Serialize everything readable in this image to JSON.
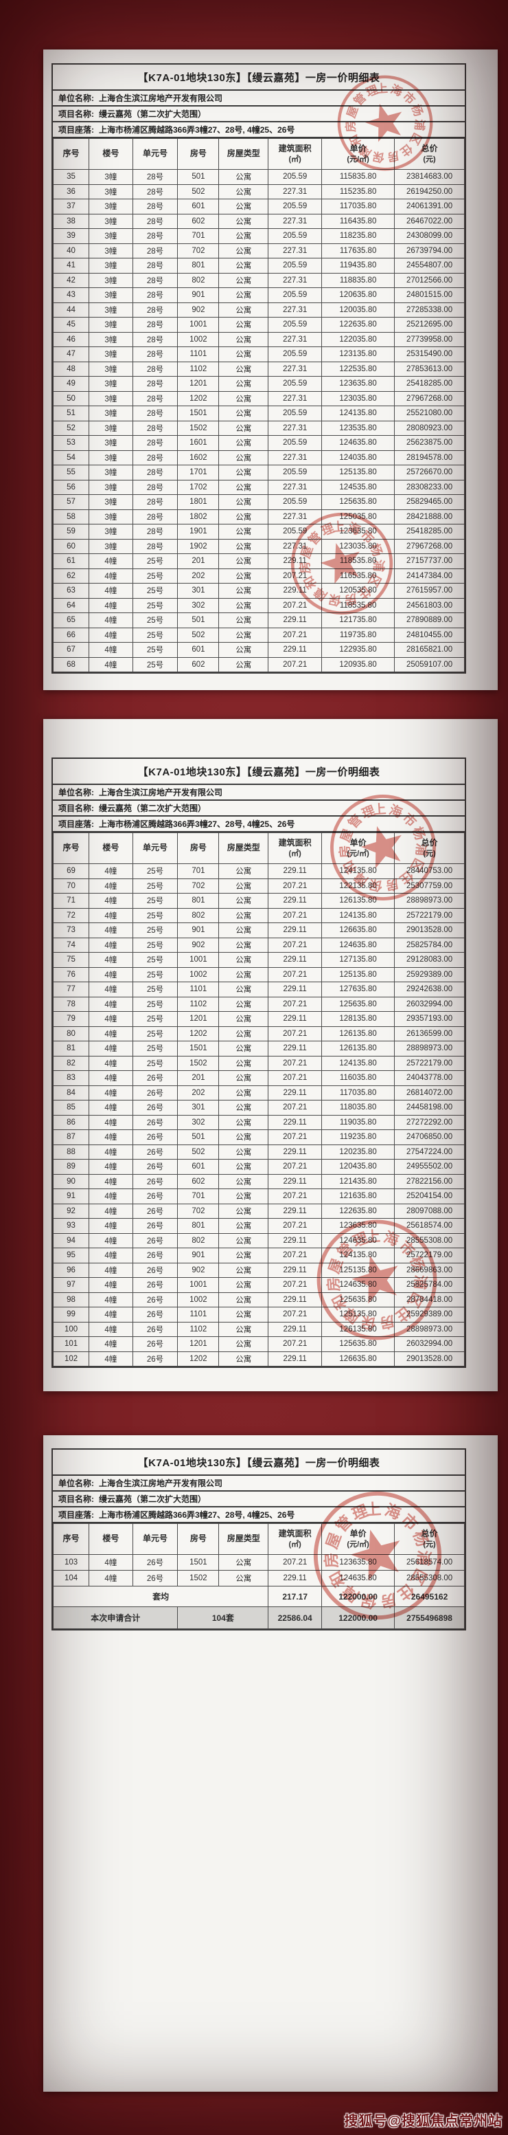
{
  "background_color": "#7a2024",
  "watermark": {
    "text": "搜狐号@搜狐焦点常州站"
  },
  "stamp": {
    "ring_text": "上海市杨浦区住房保障和房屋管理局",
    "color": "#c23b31"
  },
  "doc": {
    "title": "【K7A-01地块130东】【缦云嘉苑】一房一价明细表",
    "info": [
      {
        "label": "单位名称:",
        "value": "上海合生滨江房地产开发有限公司"
      },
      {
        "label": "项目名称:",
        "value": "缦云嘉苑（第二次扩大范围）"
      },
      {
        "label": "项目座落:",
        "value": "上海市杨浦区腾越路366弄3幢27、28号, 4幢25、26号"
      }
    ],
    "columns": [
      {
        "t": "序号"
      },
      {
        "t": "楼号"
      },
      {
        "t": "单元号"
      },
      {
        "t": "房号"
      },
      {
        "t": "房屋类型"
      },
      {
        "t": "建筑面积",
        "s": "(㎡)"
      },
      {
        "t": "单价",
        "s": "(元/㎡)"
      },
      {
        "t": "总价",
        "s": "(元)"
      }
    ]
  },
  "summary": {
    "avg_label": "套均",
    "avg": [
      "217.17",
      "122000.00",
      "26495162"
    ],
    "total_label": "本次申请合计",
    "total_units": "104套",
    "total": [
      "22586.04",
      "122000.00",
      "2755496898"
    ]
  },
  "pages": [
    {
      "rows": [
        [
          "35",
          "3幢",
          "28号",
          "501",
          "公寓",
          "205.59",
          "115835.80",
          "23814683.00"
        ],
        [
          "36",
          "3幢",
          "28号",
          "502",
          "公寓",
          "227.31",
          "115235.80",
          "26194250.00"
        ],
        [
          "37",
          "3幢",
          "28号",
          "601",
          "公寓",
          "205.59",
          "117035.80",
          "24061391.00"
        ],
        [
          "38",
          "3幢",
          "28号",
          "602",
          "公寓",
          "227.31",
          "116435.80",
          "26467022.00"
        ],
        [
          "39",
          "3幢",
          "28号",
          "701",
          "公寓",
          "205.59",
          "118235.80",
          "24308099.00"
        ],
        [
          "40",
          "3幢",
          "28号",
          "702",
          "公寓",
          "227.31",
          "117635.80",
          "26739794.00"
        ],
        [
          "41",
          "3幢",
          "28号",
          "801",
          "公寓",
          "205.59",
          "119435.80",
          "24554807.00"
        ],
        [
          "42",
          "3幢",
          "28号",
          "802",
          "公寓",
          "227.31",
          "118835.80",
          "27012566.00"
        ],
        [
          "43",
          "3幢",
          "28号",
          "901",
          "公寓",
          "205.59",
          "120635.80",
          "24801515.00"
        ],
        [
          "44",
          "3幢",
          "28号",
          "902",
          "公寓",
          "227.31",
          "120035.80",
          "27285338.00"
        ],
        [
          "45",
          "3幢",
          "28号",
          "1001",
          "公寓",
          "205.59",
          "122635.80",
          "25212695.00"
        ],
        [
          "46",
          "3幢",
          "28号",
          "1002",
          "公寓",
          "227.31",
          "122035.80",
          "27739958.00"
        ],
        [
          "47",
          "3幢",
          "28号",
          "1101",
          "公寓",
          "205.59",
          "123135.80",
          "25315490.00"
        ],
        [
          "48",
          "3幢",
          "28号",
          "1102",
          "公寓",
          "227.31",
          "122535.80",
          "27853613.00"
        ],
        [
          "49",
          "3幢",
          "28号",
          "1201",
          "公寓",
          "205.59",
          "123635.80",
          "25418285.00"
        ],
        [
          "50",
          "3幢",
          "28号",
          "1202",
          "公寓",
          "227.31",
          "123035.80",
          "27967268.00"
        ],
        [
          "51",
          "3幢",
          "28号",
          "1501",
          "公寓",
          "205.59",
          "124135.80",
          "25521080.00"
        ],
        [
          "52",
          "3幢",
          "28号",
          "1502",
          "公寓",
          "227.31",
          "123535.80",
          "28080923.00"
        ],
        [
          "53",
          "3幢",
          "28号",
          "1601",
          "公寓",
          "205.59",
          "124635.80",
          "25623875.00"
        ],
        [
          "54",
          "3幢",
          "28号",
          "1602",
          "公寓",
          "227.31",
          "124035.80",
          "28194578.00"
        ],
        [
          "55",
          "3幢",
          "28号",
          "1701",
          "公寓",
          "205.59",
          "125135.80",
          "25726670.00"
        ],
        [
          "56",
          "3幢",
          "28号",
          "1702",
          "公寓",
          "227.31",
          "124535.80",
          "28308233.00"
        ],
        [
          "57",
          "3幢",
          "28号",
          "1801",
          "公寓",
          "205.59",
          "125635.80",
          "25829465.00"
        ],
        [
          "58",
          "3幢",
          "28号",
          "1802",
          "公寓",
          "227.31",
          "125035.80",
          "28421888.00"
        ],
        [
          "59",
          "3幢",
          "28号",
          "1901",
          "公寓",
          "205.59",
          "123635.80",
          "25418285.00"
        ],
        [
          "60",
          "3幢",
          "28号",
          "1902",
          "公寓",
          "227.31",
          "123035.80",
          "27967268.00"
        ],
        [
          "61",
          "4幢",
          "25号",
          "201",
          "公寓",
          "229.11",
          "118535.80",
          "27157737.00"
        ],
        [
          "62",
          "4幢",
          "25号",
          "202",
          "公寓",
          "207.21",
          "116535.80",
          "24147384.00"
        ],
        [
          "63",
          "4幢",
          "25号",
          "301",
          "公寓",
          "229.11",
          "120535.80",
          "27615957.00"
        ],
        [
          "64",
          "4幢",
          "25号",
          "302",
          "公寓",
          "207.21",
          "118535.80",
          "24561803.00"
        ],
        [
          "65",
          "4幢",
          "25号",
          "501",
          "公寓",
          "229.11",
          "121735.80",
          "27890889.00"
        ],
        [
          "66",
          "4幢",
          "25号",
          "502",
          "公寓",
          "207.21",
          "119735.80",
          "24810455.00"
        ],
        [
          "67",
          "4幢",
          "25号",
          "601",
          "公寓",
          "229.11",
          "122935.80",
          "28165821.00"
        ],
        [
          "68",
          "4幢",
          "25号",
          "602",
          "公寓",
          "207.21",
          "120935.80",
          "25059107.00"
        ]
      ]
    },
    {
      "rows": [
        [
          "69",
          "4幢",
          "25号",
          "701",
          "公寓",
          "229.11",
          "124135.80",
          "28440753.00"
        ],
        [
          "70",
          "4幢",
          "25号",
          "702",
          "公寓",
          "207.21",
          "122135.80",
          "25307759.00"
        ],
        [
          "71",
          "4幢",
          "25号",
          "801",
          "公寓",
          "229.11",
          "126135.80",
          "28898973.00"
        ],
        [
          "72",
          "4幢",
          "25号",
          "802",
          "公寓",
          "207.21",
          "124135.80",
          "25722179.00"
        ],
        [
          "73",
          "4幢",
          "25号",
          "901",
          "公寓",
          "229.11",
          "126635.80",
          "29013528.00"
        ],
        [
          "74",
          "4幢",
          "25号",
          "902",
          "公寓",
          "207.21",
          "124635.80",
          "25825784.00"
        ],
        [
          "75",
          "4幢",
          "25号",
          "1001",
          "公寓",
          "229.11",
          "127135.80",
          "29128083.00"
        ],
        [
          "76",
          "4幢",
          "25号",
          "1002",
          "公寓",
          "207.21",
          "125135.80",
          "25929389.00"
        ],
        [
          "77",
          "4幢",
          "25号",
          "1101",
          "公寓",
          "229.11",
          "127635.80",
          "29242638.00"
        ],
        [
          "78",
          "4幢",
          "25号",
          "1102",
          "公寓",
          "207.21",
          "125635.80",
          "26032994.00"
        ],
        [
          "79",
          "4幢",
          "25号",
          "1201",
          "公寓",
          "229.11",
          "128135.80",
          "29357193.00"
        ],
        [
          "80",
          "4幢",
          "25号",
          "1202",
          "公寓",
          "207.21",
          "126135.80",
          "26136599.00"
        ],
        [
          "81",
          "4幢",
          "25号",
          "1501",
          "公寓",
          "229.11",
          "126135.80",
          "28898973.00"
        ],
        [
          "82",
          "4幢",
          "25号",
          "1502",
          "公寓",
          "207.21",
          "124135.80",
          "25722179.00"
        ],
        [
          "83",
          "4幢",
          "26号",
          "201",
          "公寓",
          "207.21",
          "116035.80",
          "24043778.00"
        ],
        [
          "84",
          "4幢",
          "26号",
          "202",
          "公寓",
          "229.11",
          "117035.80",
          "26814072.00"
        ],
        [
          "85",
          "4幢",
          "26号",
          "301",
          "公寓",
          "207.21",
          "118035.80",
          "24458198.00"
        ],
        [
          "86",
          "4幢",
          "26号",
          "302",
          "公寓",
          "229.11",
          "119035.80",
          "27272292.00"
        ],
        [
          "87",
          "4幢",
          "26号",
          "501",
          "公寓",
          "207.21",
          "119235.80",
          "24706850.00"
        ],
        [
          "88",
          "4幢",
          "26号",
          "502",
          "公寓",
          "229.11",
          "120235.80",
          "27547224.00"
        ],
        [
          "89",
          "4幢",
          "26号",
          "601",
          "公寓",
          "207.21",
          "120435.80",
          "24955502.00"
        ],
        [
          "90",
          "4幢",
          "26号",
          "602",
          "公寓",
          "229.11",
          "121435.80",
          "27822156.00"
        ],
        [
          "91",
          "4幢",
          "26号",
          "701",
          "公寓",
          "207.21",
          "121635.80",
          "25204154.00"
        ],
        [
          "92",
          "4幢",
          "26号",
          "702",
          "公寓",
          "229.11",
          "122635.80",
          "28097088.00"
        ],
        [
          "93",
          "4幢",
          "26号",
          "801",
          "公寓",
          "207.21",
          "123635.80",
          "25618574.00"
        ],
        [
          "94",
          "4幢",
          "26号",
          "802",
          "公寓",
          "229.11",
          "124635.80",
          "28555308.00"
        ],
        [
          "95",
          "4幢",
          "26号",
          "901",
          "公寓",
          "207.21",
          "124135.80",
          "25722179.00"
        ],
        [
          "96",
          "4幢",
          "26号",
          "902",
          "公寓",
          "229.11",
          "125135.80",
          "28669863.00"
        ],
        [
          "97",
          "4幢",
          "26号",
          "1001",
          "公寓",
          "207.21",
          "124635.80",
          "25825784.00"
        ],
        [
          "98",
          "4幢",
          "26号",
          "1002",
          "公寓",
          "229.11",
          "125635.80",
          "28784418.00"
        ],
        [
          "99",
          "4幢",
          "26号",
          "1101",
          "公寓",
          "207.21",
          "125135.80",
          "25929389.00"
        ],
        [
          "100",
          "4幢",
          "26号",
          "1102",
          "公寓",
          "229.11",
          "126135.80",
          "28898973.00"
        ],
        [
          "101",
          "4幢",
          "26号",
          "1201",
          "公寓",
          "207.21",
          "125635.80",
          "26032994.00"
        ],
        [
          "102",
          "4幢",
          "26号",
          "1202",
          "公寓",
          "229.11",
          "126635.80",
          "29013528.00"
        ]
      ]
    },
    {
      "has_summary": true,
      "rows": [
        [
          "103",
          "4幢",
          "26号",
          "1501",
          "公寓",
          "207.21",
          "123635.80",
          "25618574.00"
        ],
        [
          "104",
          "4幢",
          "26号",
          "1502",
          "公寓",
          "229.11",
          "124635.80",
          "28555308.00"
        ]
      ]
    }
  ]
}
